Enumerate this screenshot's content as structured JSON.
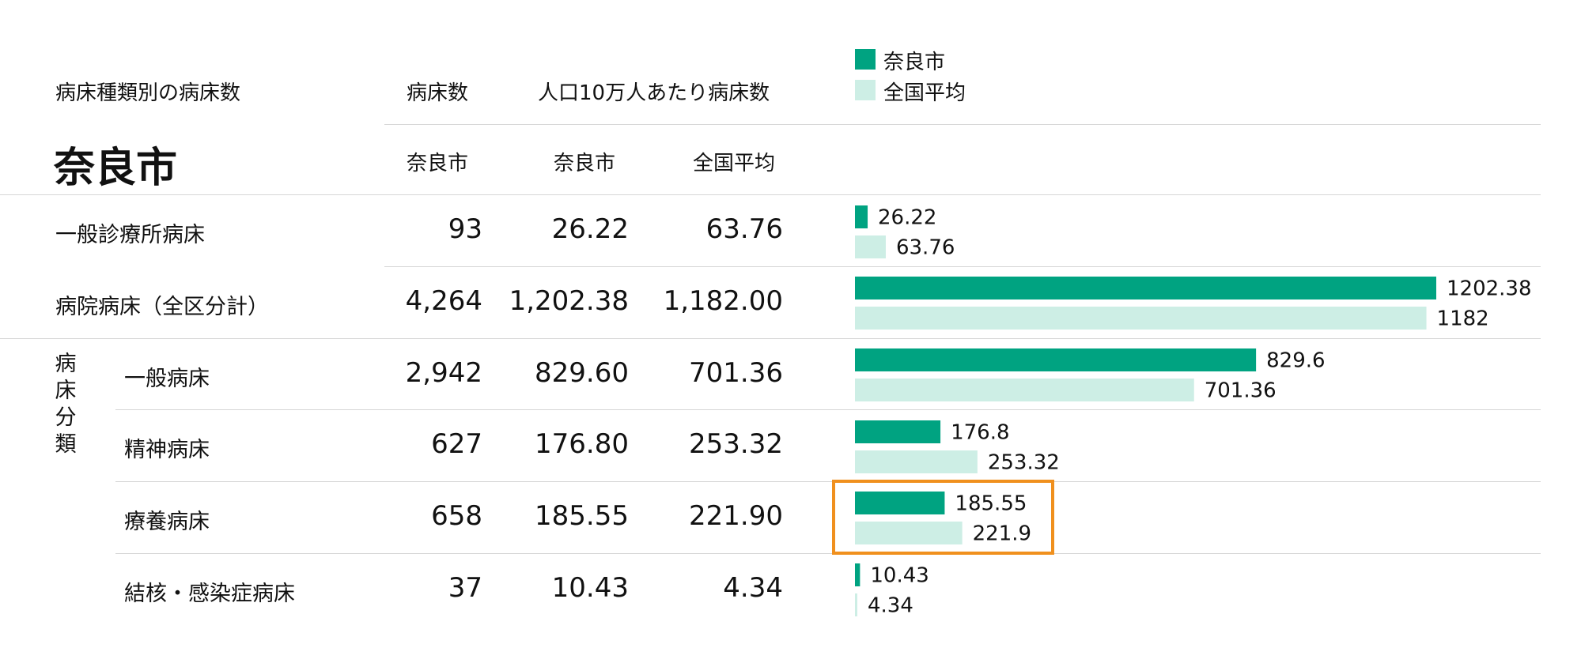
{
  "header": {
    "section_title": "病床種類別の病床数",
    "col_beds": "病床数",
    "col_per100k": "人口10万人あたり病床数",
    "city_title": "奈良市",
    "sub_beds": "奈良市",
    "sub_per100k_city": "奈良市",
    "sub_per100k_national": "全国平均"
  },
  "legend": {
    "city": "奈良市",
    "national": "全国平均"
  },
  "group_label": [
    "病",
    "床",
    "分",
    "類"
  ],
  "colors": {
    "city": "#00a381",
    "national": "#cdeee5",
    "highlight": "#f0901e"
  },
  "rows": [
    {
      "label": "一般診療所病床",
      "beds": "93",
      "city": "26.22",
      "national": "63.76"
    },
    {
      "label": "病院病床（全区分計）",
      "beds": "4,264",
      "city": "1,202.38",
      "national": "1,182.00"
    },
    {
      "label": "一般病床",
      "beds": "2,942",
      "city": "829.60",
      "national": "701.36"
    },
    {
      "label": "精神病床",
      "beds": "627",
      "city": "176.80",
      "national": "253.32"
    },
    {
      "label": "療養病床",
      "beds": "658",
      "city": "185.55",
      "national": "221.90"
    },
    {
      "label": "結核・感染症病床",
      "beds": "37",
      "city": "10.43",
      "national": "4.34"
    }
  ],
  "chart_data": {
    "type": "bar",
    "orientation": "horizontal",
    "categories": [
      "一般診療所病床",
      "病院病床（全区分計）",
      "一般病床",
      "精神病床",
      "療養病床",
      "結核・感染症病床"
    ],
    "series": [
      {
        "name": "奈良市",
        "values": [
          26.22,
          1202.38,
          829.6,
          176.8,
          185.55,
          10.43
        ],
        "labels": [
          "26.22",
          "1202.38",
          "829.6",
          "176.8",
          "185.55",
          "10.43"
        ]
      },
      {
        "name": "全国平均",
        "values": [
          63.76,
          1182,
          701.36,
          253.32,
          221.9,
          4.34
        ],
        "labels": [
          "63.76",
          "1182",
          "701.36",
          "253.32",
          "221.9",
          "4.34"
        ]
      }
    ],
    "highlight_index": 4,
    "xlim": [
      0,
      1202.38
    ],
    "grid": false,
    "legend": "top-left"
  }
}
